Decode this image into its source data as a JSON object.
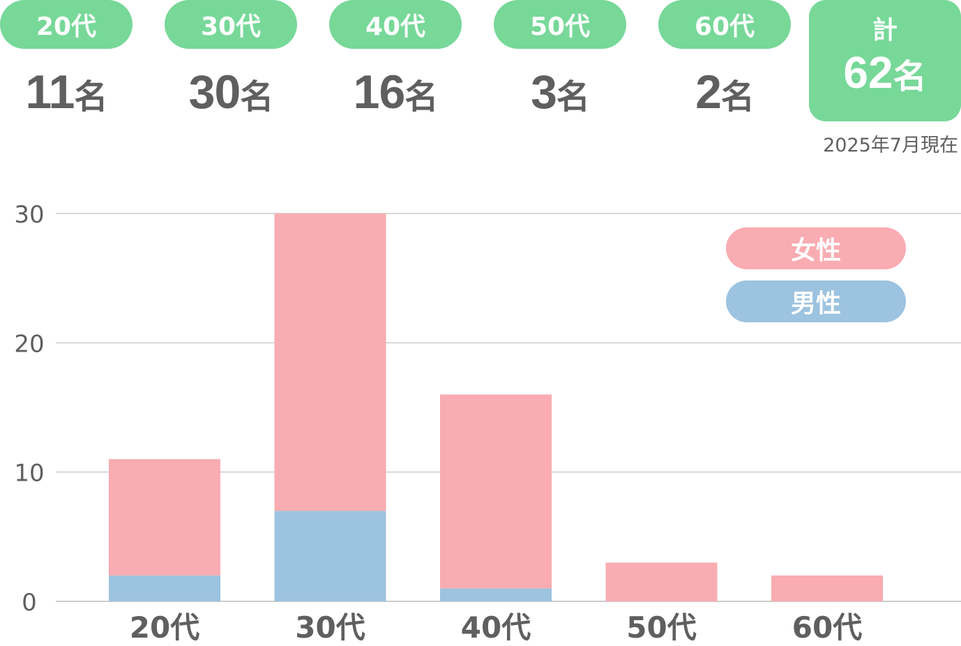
{
  "summary": {
    "groups": [
      {
        "age": "20代",
        "count": "11",
        "unit": "名"
      },
      {
        "age": "30代",
        "count": "30",
        "unit": "名"
      },
      {
        "age": "40代",
        "count": "16",
        "unit": "名"
      },
      {
        "age": "50代",
        "count": "3",
        "unit": "名"
      },
      {
        "age": "60代",
        "count": "2",
        "unit": "名"
      }
    ],
    "total_label": "計",
    "total_count": "62",
    "total_unit": "名",
    "as_of": "2025年7月現在"
  },
  "colors": {
    "accent": "#77d898",
    "female": "#f9acb2",
    "male": "#9cc3df",
    "grid": "#cccccc",
    "text": "#5f5f5f"
  },
  "chart_data": {
    "type": "bar",
    "stacked": true,
    "categories": [
      "20代",
      "30代",
      "40代",
      "50代",
      "60代"
    ],
    "series": [
      {
        "name": "男性",
        "values": [
          2,
          7,
          1,
          0,
          0
        ]
      },
      {
        "name": "女性",
        "values": [
          9,
          23,
          15,
          3,
          2
        ]
      }
    ],
    "yticks": [
      0,
      10,
      20,
      30
    ],
    "ylim": [
      0,
      30
    ],
    "grid": true,
    "legend": {
      "position": "top-right",
      "items": [
        "女性",
        "男性"
      ]
    }
  }
}
